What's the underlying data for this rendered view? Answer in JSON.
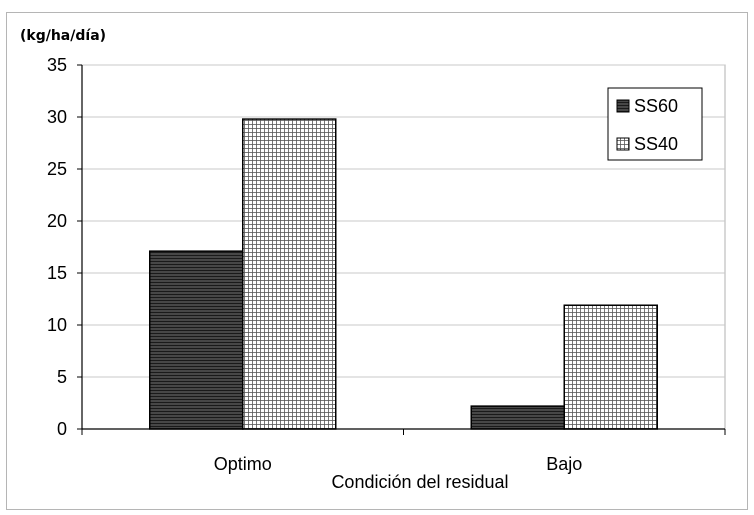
{
  "chart_data": {
    "type": "bar",
    "title": "",
    "unit_label": "(kg/ha/día)",
    "xlabel": "Condición del residual",
    "ylabel": "",
    "categories": [
      "Optimo",
      "Bajo"
    ],
    "series": [
      {
        "name": "SS60",
        "values": [
          17.1,
          2.2
        ],
        "pattern": "dark-horizontal-lines",
        "color": "#3a3a3a"
      },
      {
        "name": "SS40",
        "values": [
          29.8,
          11.9
        ],
        "pattern": "light-grid",
        "color": "#8a8a8a"
      }
    ],
    "ylim": [
      0,
      35
    ],
    "yticks": [
      "0",
      "5",
      "10",
      "15",
      "20",
      "25",
      "30",
      "35"
    ],
    "grid": true,
    "legend_position": "top-right"
  }
}
